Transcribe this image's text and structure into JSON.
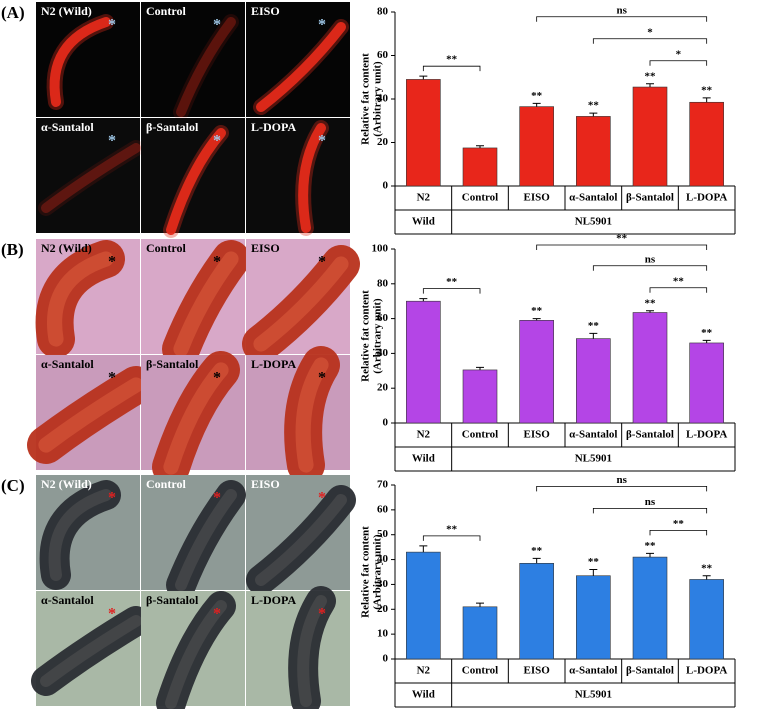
{
  "figure": {
    "panels": [
      {
        "label": "(A)",
        "marker": "*",
        "tiles": [
          "N2 (Wild)",
          "Control",
          "EISO",
          "α-Santalol",
          "β-Santalol",
          "L-DOPA"
        ]
      },
      {
        "label": "(B)",
        "marker": "*",
        "tiles": [
          "N2 (Wild)",
          "Control",
          "EISO",
          "α-Santalol",
          "β-Santalol",
          "L-DOPA"
        ]
      },
      {
        "label": "(C)",
        "marker": "*",
        "tiles": [
          "N2 (Wild)",
          "Control",
          "EISO",
          "α-Santalol",
          "β-Santalol",
          "L-DOPA"
        ]
      }
    ]
  },
  "chart_data": [
    {
      "type": "bar",
      "ylabel": [
        "Relative fat content",
        "(Arbitrary unit)"
      ],
      "categories": [
        "N2",
        "Control",
        "EISO",
        "α-Santalol",
        "β-Santalol",
        "L-DOPA"
      ],
      "x_groups": [
        {
          "name": "Wild",
          "categories": 1
        },
        {
          "name": "NL5901",
          "categories": 5
        }
      ],
      "values": [
        49,
        17.5,
        36.5,
        32,
        45.5,
        38.5
      ],
      "errors": [
        1.5,
        1,
        1.5,
        1.5,
        1.5,
        2
      ],
      "stars": [
        null,
        null,
        "**",
        "**",
        "**",
        "**"
      ],
      "brackets": [
        {
          "from": 0,
          "to": 1,
          "label": "**"
        },
        {
          "from": 2,
          "to": 5,
          "label": "ns"
        },
        {
          "from": 3,
          "to": 5,
          "label": "*"
        },
        {
          "from": 4,
          "to": 5,
          "label": "*"
        }
      ],
      "color": "#e8261b",
      "ylim": [
        0,
        80
      ],
      "yticks": [
        0,
        20,
        40,
        60,
        80
      ]
    },
    {
      "type": "bar",
      "ylabel": [
        "Relative fat content",
        "(Arbitrary unit)"
      ],
      "categories": [
        "N2",
        "Control",
        "EISO",
        "α-Santalol",
        "β-Santalol",
        "L-DOPA"
      ],
      "x_groups": [
        {
          "name": "Wild",
          "categories": 1
        },
        {
          "name": "NL5901",
          "categories": 5
        }
      ],
      "values": [
        70,
        30.5,
        59,
        48.5,
        63.5,
        46
      ],
      "errors": [
        1.5,
        1.5,
        1,
        3,
        1,
        1.5
      ],
      "stars": [
        null,
        null,
        "**",
        "**",
        "**",
        "**"
      ],
      "brackets": [
        {
          "from": 0,
          "to": 1,
          "label": "**"
        },
        {
          "from": 2,
          "to": 5,
          "label": "**"
        },
        {
          "from": 3,
          "to": 5,
          "label": "ns"
        },
        {
          "from": 4,
          "to": 5,
          "label": "**"
        }
      ],
      "color": "#b445e6",
      "ylim": [
        0,
        100
      ],
      "yticks": [
        0,
        20,
        40,
        60,
        80,
        100
      ]
    },
    {
      "type": "bar",
      "ylabel": [
        "Relative fat content",
        "(Arbitrary unit)"
      ],
      "categories": [
        "N2",
        "Control",
        "EISO",
        "α-Santalol",
        "β-Santalol",
        "L-DOPA"
      ],
      "x_groups": [
        {
          "name": "Wild",
          "categories": 1
        },
        {
          "name": "NL5901",
          "categories": 5
        }
      ],
      "values": [
        43,
        21,
        38.5,
        33.5,
        41,
        32
      ],
      "errors": [
        2.5,
        1.5,
        2,
        2.5,
        1.5,
        1.5
      ],
      "stars": [
        null,
        null,
        "**",
        "**",
        "**",
        "**"
      ],
      "brackets": [
        {
          "from": 0,
          "to": 1,
          "label": "**"
        },
        {
          "from": 2,
          "to": 5,
          "label": "ns"
        },
        {
          "from": 3,
          "to": 5,
          "label": "ns"
        },
        {
          "from": 4,
          "to": 5,
          "label": "**"
        }
      ],
      "color": "#2d7fe2",
      "ylim": [
        0,
        70
      ],
      "yticks": [
        0,
        10,
        20,
        30,
        40,
        50,
        60,
        70
      ]
    }
  ]
}
